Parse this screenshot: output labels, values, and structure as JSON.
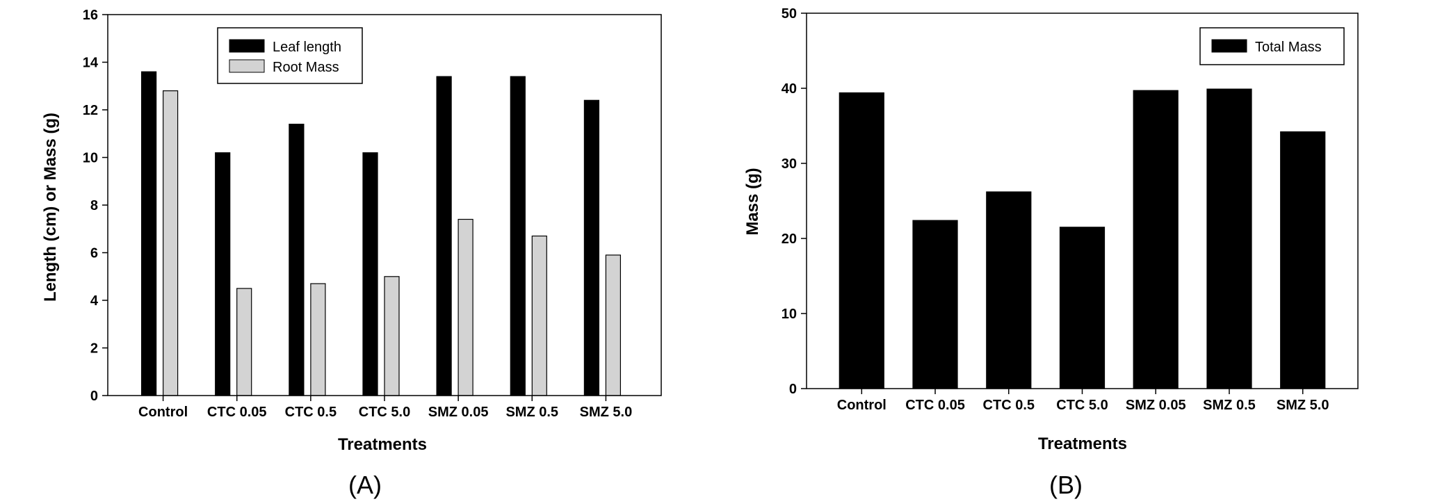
{
  "chart_data": [
    {
      "id": "A",
      "type": "bar",
      "panel_label": "(A)",
      "categories": [
        "Control",
        "CTC 0.05",
        "CTC 0.5",
        "CTC 5.0",
        "SMZ 0.05",
        "SMZ 0.5",
        "SMZ 5.0"
      ],
      "series": [
        {
          "name": "Leaf length",
          "color": "#000000",
          "values": [
            13.6,
            10.2,
            11.4,
            10.2,
            13.4,
            13.4,
            12.4
          ]
        },
        {
          "name": "Root Mass",
          "color": "#d3d3d3",
          "values": [
            12.8,
            4.5,
            4.7,
            5.0,
            7.4,
            6.7,
            5.9
          ]
        }
      ],
      "xlabel": "Treatments",
      "ylabel": "Length (cm) or Mass (g)",
      "ylim": [
        0,
        16
      ],
      "yticks": [
        0,
        2,
        4,
        6,
        8,
        10,
        12,
        14,
        16
      ],
      "legend_position": "top-center"
    },
    {
      "id": "B",
      "type": "bar",
      "panel_label": "(B)",
      "categories": [
        "Control",
        "CTC 0.05",
        "CTC 0.5",
        "CTC 5.0",
        "SMZ 0.05",
        "SMZ 0.5",
        "SMZ 5.0"
      ],
      "series": [
        {
          "name": "Total Mass",
          "color": "#000000",
          "values": [
            39.4,
            22.4,
            26.2,
            21.5,
            39.7,
            39.9,
            34.2
          ]
        }
      ],
      "xlabel": "Treatments",
      "ylabel": "Mass (g)",
      "ylim": [
        0,
        50
      ],
      "yticks": [
        0,
        10,
        20,
        30,
        40,
        50
      ],
      "legend_position": "top-right"
    }
  ]
}
